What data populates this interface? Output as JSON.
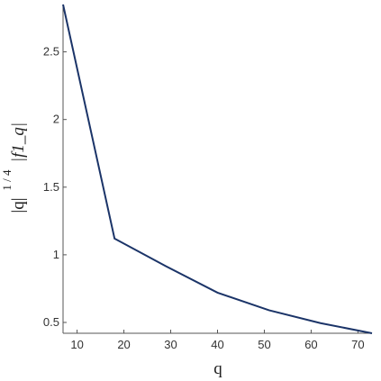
{
  "chart_data": {
    "type": "line",
    "x": [
      7,
      18,
      29,
      40,
      51,
      62,
      73
    ],
    "series": [
      {
        "color": "#1b3468",
        "values": [
          2.85,
          1.12,
          0.915,
          0.72,
          0.59,
          0.495,
          0.42
        ]
      }
    ],
    "xlim": [
      7,
      73
    ],
    "ylim": [
      0.42,
      2.85
    ],
    "xticks": [
      10,
      20,
      30,
      40,
      50,
      60,
      70
    ],
    "yticks": [
      0.5,
      1,
      1.5,
      2,
      2.5
    ],
    "xlabel": "q",
    "ylabel": {
      "base": "|q|",
      "exponent": "1 / 4",
      "rest": "|f1_q|"
    }
  }
}
